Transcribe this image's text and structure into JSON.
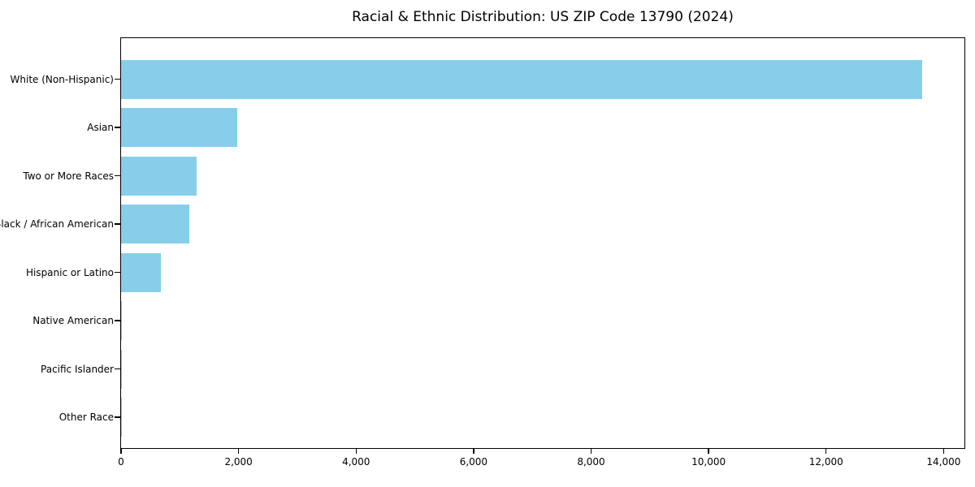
{
  "chart_data": {
    "type": "bar",
    "orientation": "horizontal",
    "title": "Racial & Ethnic Distribution: US ZIP Code 13790 (2024)",
    "categories": [
      "White (Non-Hispanic)",
      "Asian",
      "Two or More Races",
      "Black / African American",
      "Hispanic or Latino",
      "Native American",
      "Pacific Islander",
      "Other Race"
    ],
    "values": [
      13635,
      1980,
      1290,
      1165,
      680,
      20,
      5,
      10
    ],
    "xlabel": "",
    "ylabel": "",
    "xlim": [
      0,
      14340
    ],
    "xticks": [
      0,
      2000,
      4000,
      6000,
      8000,
      10000,
      12000,
      14000
    ],
    "xtick_labels": [
      "0",
      "2,000",
      "4,000",
      "6,000",
      "8,000",
      "10,000",
      "12,000",
      "14,000"
    ],
    "bar_color": "#87CEEB",
    "spine_color": "#000000",
    "grid": false,
    "legend": null
  }
}
